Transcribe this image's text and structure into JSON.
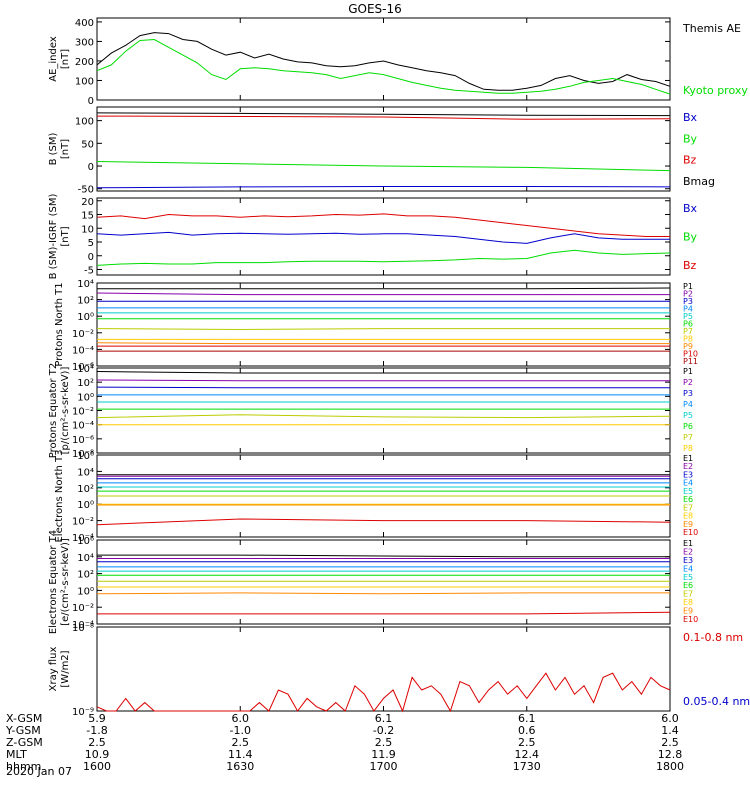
{
  "title": "GOES-16",
  "date": "2020 Jan 07",
  "time_axis": {
    "ticks": [
      "1600",
      "1630",
      "1700",
      "1730",
      "1800"
    ],
    "rows": [
      {
        "label": "X-GSM",
        "values": [
          "5.9",
          "6.0",
          "6.1",
          "6.1",
          "6.0"
        ]
      },
      {
        "label": "Y-GSM",
        "values": [
          "-1.8",
          "-1.0",
          "-0.2",
          "0.6",
          "1.4"
        ]
      },
      {
        "label": "Z-GSM",
        "values": [
          "2.5",
          "2.5",
          "2.5",
          "2.5",
          "2.5"
        ]
      },
      {
        "label": "MLT",
        "values": [
          "10.9",
          "11.4",
          "11.9",
          "12.4",
          "12.8"
        ]
      },
      {
        "label": "hhmm",
        "values": [
          "1600",
          "1630",
          "1700",
          "1730",
          "1800"
        ]
      }
    ]
  },
  "colors": {
    "black": "#000000",
    "green": "#00dd00",
    "red": "#dd0000",
    "blue": "#0000cc"
  },
  "chart_data": [
    {
      "type": "line",
      "id": "ae",
      "ylabel": "AE_index [nT]",
      "yticks": [
        "0",
        "100",
        "200",
        "300",
        "400"
      ],
      "ylim": [
        0,
        420
      ],
      "x": [
        1600,
        1603,
        1606,
        1609,
        1612,
        1615,
        1618,
        1621,
        1624,
        1627,
        1630,
        1633,
        1636,
        1639,
        1642,
        1645,
        1648,
        1651,
        1654,
        1657,
        1700,
        1703,
        1706,
        1709,
        1712,
        1715,
        1718,
        1721,
        1724,
        1727,
        1730,
        1733,
        1736,
        1739,
        1742,
        1745,
        1748,
        1751,
        1754,
        1757,
        1800
      ],
      "series": [
        {
          "name": "Themis AE",
          "color": "#000000",
          "values": [
            180,
            240,
            280,
            330,
            345,
            340,
            310,
            300,
            260,
            230,
            245,
            215,
            235,
            210,
            195,
            190,
            175,
            170,
            175,
            190,
            200,
            180,
            165,
            150,
            140,
            125,
            85,
            55,
            50,
            50,
            60,
            75,
            110,
            125,
            100,
            85,
            95,
            130,
            105,
            95,
            70
          ]
        },
        {
          "name": "Kyoto proxy AE",
          "color": "#00dd00",
          "values": [
            150,
            180,
            250,
            305,
            310,
            270,
            230,
            190,
            130,
            105,
            160,
            165,
            160,
            150,
            145,
            140,
            130,
            110,
            125,
            140,
            130,
            110,
            90,
            75,
            60,
            50,
            45,
            40,
            35,
            35,
            40,
            45,
            55,
            70,
            90,
            100,
            110,
            95,
            80,
            55,
            30
          ]
        }
      ]
    },
    {
      "type": "line",
      "id": "b_sm",
      "ylabel": "B (SM) [nT]",
      "yticks": [
        "-50",
        "0",
        "50",
        "100"
      ],
      "ylim": [
        -55,
        130
      ],
      "x": [
        1600,
        1630,
        1700,
        1730,
        1800
      ],
      "series": [
        {
          "name": "Bx",
          "color": "#0000cc",
          "values": [
            -48,
            -46,
            -45,
            -45,
            -46
          ]
        },
        {
          "name": "By",
          "color": "#00dd00",
          "values": [
            10,
            5,
            0,
            -3,
            -10
          ]
        },
        {
          "name": "Bz",
          "color": "#dd0000",
          "values": [
            110,
            109,
            108,
            103,
            104
          ]
        },
        {
          "name": "Bmag",
          "color": "#000000",
          "values": [
            117,
            116,
            114,
            112,
            111
          ]
        }
      ]
    },
    {
      "type": "line",
      "id": "b_igrf",
      "ylabel": "B (SM)-IGRF (SM) [nT]",
      "yticks": [
        "-5",
        "0",
        "5",
        "10",
        "15",
        "20"
      ],
      "ylim": [
        -7,
        21
      ],
      "x": [
        1600,
        1605,
        1610,
        1615,
        1620,
        1625,
        1630,
        1635,
        1640,
        1645,
        1650,
        1655,
        1700,
        1705,
        1710,
        1715,
        1720,
        1725,
        1730,
        1735,
        1740,
        1745,
        1750,
        1755,
        1800
      ],
      "series": [
        {
          "name": "Bx",
          "color": "#0000cc",
          "values": [
            8,
            7.5,
            8,
            8.5,
            7.5,
            8,
            8.2,
            8,
            7.8,
            8,
            8.2,
            7.8,
            8,
            8,
            7.5,
            7,
            6,
            5,
            4.5,
            6.5,
            8,
            6.5,
            6,
            6,
            6
          ]
        },
        {
          "name": "By",
          "color": "#00dd00",
          "values": [
            -3.5,
            -3,
            -2.8,
            -3,
            -3,
            -2.5,
            -2.5,
            -2.5,
            -2.2,
            -2,
            -2,
            -2,
            -2.2,
            -2,
            -1.8,
            -1.5,
            -1,
            -1.2,
            -1,
            1,
            2,
            1,
            0.5,
            0.8,
            1
          ]
        },
        {
          "name": "Bz",
          "color": "#dd0000",
          "values": [
            14,
            14.5,
            13.5,
            15,
            14.5,
            14.5,
            14,
            14.5,
            14.2,
            14.5,
            15,
            14.8,
            15.2,
            14.5,
            14.5,
            14,
            13,
            12,
            11,
            10,
            9,
            8,
            7.5,
            7,
            7
          ]
        }
      ]
    },
    {
      "type": "line",
      "id": "protons_t1",
      "log": true,
      "ylabel": "Protons North T1",
      "yticks": [
        "10⁻⁶",
        "10⁻⁴",
        "10⁻²",
        "10⁰",
        "10²",
        "10⁴"
      ],
      "ylim_exp": [
        -6,
        4
      ],
      "x": [
        1600,
        1630,
        1700,
        1730,
        1800
      ],
      "series": [
        {
          "name": "P1",
          "color": "#000000",
          "values_exp": [
            3.3,
            3.3,
            3.3,
            3.3,
            3.4
          ]
        },
        {
          "name": "P2",
          "color": "#8800aa",
          "values_exp": [
            2.8,
            2.6,
            2.6,
            2.6,
            2.6
          ]
        },
        {
          "name": "P3",
          "color": "#0000cc",
          "values_exp": [
            1.8,
            1.8,
            1.8,
            1.8,
            1.8
          ]
        },
        {
          "name": "P4",
          "color": "#0088ff",
          "values_exp": [
            1.0,
            1.0,
            1.0,
            1.0,
            1.0
          ]
        },
        {
          "name": "P5",
          "color": "#00cccc",
          "values_exp": [
            0.4,
            0.4,
            0.4,
            0.4,
            0.4
          ]
        },
        {
          "name": "P6",
          "color": "#00dd00",
          "values_exp": [
            -0.3,
            -0.3,
            -0.3,
            -0.3,
            -0.3
          ]
        },
        {
          "name": "P7",
          "color": "#bbcc00",
          "values_exp": [
            -1.5,
            -1.6,
            -1.5,
            -1.5,
            -1.5
          ]
        },
        {
          "name": "P8",
          "color": "#ffcc00",
          "values_exp": [
            -2.8,
            -2.8,
            -2.8,
            -2.8,
            -2.8
          ]
        },
        {
          "name": "P9",
          "color": "#ff8800",
          "values_exp": [
            -3.2,
            -3.3,
            -3.3,
            -3.3,
            -3.3
          ]
        },
        {
          "name": "P10",
          "color": "#dd0000",
          "values_exp": [
            -3.6,
            -3.6,
            -3.6,
            -3.6,
            -3.6
          ]
        },
        {
          "name": "P11",
          "color": "#aa0000",
          "values_exp": [
            -4.2,
            -4.2,
            -4.2,
            -4.2,
            -4.2
          ]
        }
      ]
    },
    {
      "type": "line",
      "id": "protons_t2",
      "log": true,
      "ylabel": "Protons Equator T2 [p/(cm²-s-sr-keV)]",
      "yticks": [
        "10⁻⁸",
        "10⁻⁶",
        "10⁻⁴",
        "10⁻²",
        "10⁰",
        "10²",
        "10⁴"
      ],
      "ylim_exp": [
        -8,
        4
      ],
      "x": [
        1600,
        1630,
        1700,
        1730,
        1800
      ],
      "series": [
        {
          "name": "P1",
          "color": "#000000",
          "values_exp": [
            3.5,
            3.3,
            3.3,
            3.3,
            3.3
          ]
        },
        {
          "name": "P2",
          "color": "#8800aa",
          "values_exp": [
            2.3,
            2.2,
            2.2,
            2.2,
            2.2
          ]
        },
        {
          "name": "P3",
          "color": "#0000cc",
          "values_exp": [
            1.3,
            1.2,
            1.2,
            1.2,
            1.2
          ]
        },
        {
          "name": "P4",
          "color": "#0088ff",
          "values_exp": [
            0.2,
            0.2,
            0.2,
            0.2,
            0.2
          ]
        },
        {
          "name": "P5",
          "color": "#00cccc",
          "values_exp": [
            -0.8,
            -0.8,
            -0.8,
            -0.8,
            -0.8
          ]
        },
        {
          "name": "P6",
          "color": "#00dd00",
          "values_exp": [
            -1.8,
            -1.8,
            -1.8,
            -1.8,
            -1.8
          ]
        },
        {
          "name": "P7",
          "color": "#bbcc00",
          "values_exp": [
            -3.0,
            -2.6,
            -2.9,
            -3.0,
            -2.8
          ]
        },
        {
          "name": "P8",
          "color": "#ffcc00",
          "values_exp": [
            -4.0,
            -4.0,
            -4.0,
            -4.0,
            -4.0
          ]
        }
      ]
    },
    {
      "type": "line",
      "id": "electrons_t3",
      "log": true,
      "ylabel": "Electrons North T3",
      "yticks": [
        "10⁻⁴",
        "10⁻²",
        "10⁰",
        "10²",
        "10⁴",
        "10⁶"
      ],
      "ylim_exp": [
        -4,
        6
      ],
      "x": [
        1600,
        1630,
        1700,
        1730,
        1800
      ],
      "series": [
        {
          "name": "E1",
          "color": "#000000",
          "values_exp": [
            3.6,
            3.6,
            3.6,
            3.6,
            3.6
          ]
        },
        {
          "name": "E2",
          "color": "#8800aa",
          "values_exp": [
            3.4,
            3.4,
            3.4,
            3.4,
            3.4
          ]
        },
        {
          "name": "E3",
          "color": "#0000cc",
          "values_exp": [
            3.1,
            3.1,
            3.1,
            3.1,
            3.1
          ]
        },
        {
          "name": "E4",
          "color": "#0088ff",
          "values_exp": [
            2.6,
            2.6,
            2.6,
            2.6,
            2.6
          ]
        },
        {
          "name": "E5",
          "color": "#00cccc",
          "values_exp": [
            2.1,
            2.1,
            2.1,
            2.1,
            2.1
          ]
        },
        {
          "name": "E6",
          "color": "#00dd00",
          "values_exp": [
            1.6,
            1.6,
            1.6,
            1.6,
            1.6
          ]
        },
        {
          "name": "E7",
          "color": "#bbcc00",
          "values_exp": [
            1.0,
            1.0,
            1.0,
            1.0,
            1.0
          ]
        },
        {
          "name": "E8",
          "color": "#ffcc00",
          "values_exp": [
            0.0,
            0.0,
            0.0,
            0.0,
            0.0
          ]
        },
        {
          "name": "E9",
          "color": "#ff8800",
          "values_exp": [
            -0.1,
            -0.1,
            -0.1,
            -0.1,
            -0.1
          ]
        },
        {
          "name": "E10",
          "color": "#dd0000",
          "values_exp": [
            -2.5,
            -1.8,
            -2.0,
            -2.0,
            -2.2
          ]
        }
      ]
    },
    {
      "type": "line",
      "id": "electrons_t4",
      "log": true,
      "ylabel": "Electrons Equator T4 [e/(cm²-s-sr-keV)]",
      "yticks": [
        "10⁻⁴",
        "10⁻²",
        "10⁰",
        "10²",
        "10⁴",
        "10⁶"
      ],
      "ylim_exp": [
        -4,
        6
      ],
      "x": [
        1600,
        1630,
        1700,
        1730,
        1800
      ],
      "series": [
        {
          "name": "E1",
          "color": "#000000",
          "values_exp": [
            4.2,
            4.2,
            4.1,
            4.0,
            4.0
          ]
        },
        {
          "name": "E2",
          "color": "#8800aa",
          "values_exp": [
            3.8,
            3.8,
            3.8,
            3.8,
            3.8
          ]
        },
        {
          "name": "E3",
          "color": "#0000cc",
          "values_exp": [
            3.4,
            3.4,
            3.4,
            3.4,
            3.4
          ]
        },
        {
          "name": "E4",
          "color": "#0088ff",
          "values_exp": [
            2.8,
            2.8,
            2.8,
            2.8,
            2.8
          ]
        },
        {
          "name": "E5",
          "color": "#00cccc",
          "values_exp": [
            2.3,
            2.3,
            2.3,
            2.3,
            2.3
          ]
        },
        {
          "name": "E6",
          "color": "#00dd00",
          "values_exp": [
            1.8,
            1.8,
            1.8,
            1.8,
            1.8
          ]
        },
        {
          "name": "E7",
          "color": "#bbcc00",
          "values_exp": [
            1.1,
            1.1,
            1.1,
            1.1,
            1.1
          ]
        },
        {
          "name": "E8",
          "color": "#ffcc00",
          "values_exp": [
            0.4,
            0.4,
            0.4,
            0.4,
            0.4
          ]
        },
        {
          "name": "E9",
          "color": "#ff8800",
          "values_exp": [
            -0.4,
            -0.3,
            -0.4,
            -0.3,
            -0.3
          ]
        },
        {
          "name": "E10",
          "color": "#dd0000",
          "values_exp": [
            -2.8,
            -2.8,
            -2.8,
            -2.8,
            -2.6
          ]
        }
      ]
    },
    {
      "type": "line",
      "id": "xray",
      "log": true,
      "ylabel": "Xray flux [W/m2]",
      "yticks": [
        "10⁻⁹",
        "10⁻⁸"
      ],
      "ylim_exp": [
        -9,
        -8
      ],
      "x": [
        1600,
        1602,
        1604,
        1606,
        1608,
        1610,
        1612,
        1614,
        1616,
        1618,
        1620,
        1622,
        1624,
        1626,
        1628,
        1630,
        1632,
        1634,
        1636,
        1638,
        1640,
        1642,
        1644,
        1646,
        1648,
        1650,
        1652,
        1654,
        1656,
        1658,
        1700,
        1702,
        1704,
        1706,
        1708,
        1710,
        1712,
        1714,
        1716,
        1718,
        1720,
        1722,
        1724,
        1726,
        1728,
        1730,
        1732,
        1734,
        1736,
        1738,
        1740,
        1742,
        1744,
        1746,
        1748,
        1750,
        1752,
        1754,
        1756,
        1758,
        1800
      ],
      "series": [
        {
          "name": "0.1-0.8 nm",
          "color": "#dd0000",
          "values_exp": [
            -8.95,
            -9.0,
            -9.0,
            -8.85,
            -9.0,
            -8.9,
            -9.0,
            -9.0,
            -9.0,
            -9.0,
            -9.0,
            -9.0,
            -9.0,
            -9.0,
            -9.0,
            -9.0,
            -9.0,
            -8.9,
            -9.0,
            -8.75,
            -8.8,
            -9.0,
            -8.85,
            -8.95,
            -9.0,
            -8.9,
            -9.0,
            -8.7,
            -8.8,
            -9.0,
            -8.85,
            -8.75,
            -9.0,
            -8.6,
            -8.75,
            -8.7,
            -8.8,
            -9.0,
            -8.65,
            -8.7,
            -8.9,
            -8.75,
            -8.65,
            -8.8,
            -8.7,
            -8.85,
            -8.7,
            -8.55,
            -8.75,
            -8.6,
            -8.8,
            -8.7,
            -8.9,
            -8.6,
            -8.55,
            -8.75,
            -8.65,
            -8.8,
            -8.6,
            -8.7,
            -8.75
          ]
        },
        {
          "name": "0.05-0.4 nm",
          "color": "#0000cc",
          "values_exp": []
        }
      ]
    }
  ]
}
